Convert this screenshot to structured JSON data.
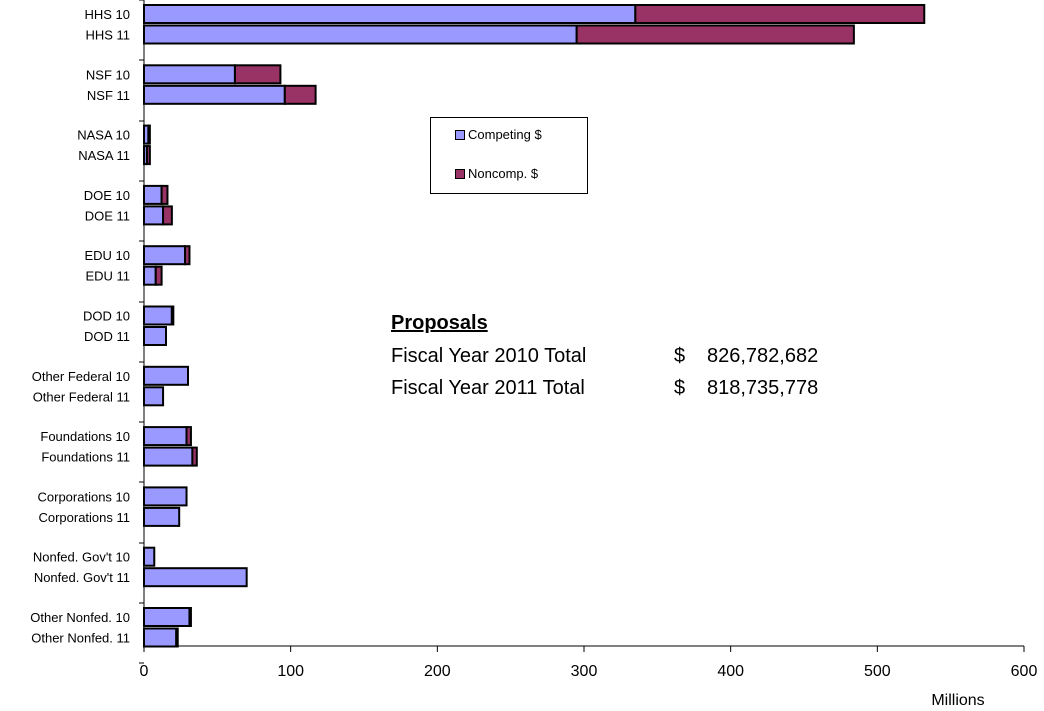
{
  "chart_data": {
    "type": "bar",
    "orientation": "horizontal",
    "stacked": true,
    "categories": [
      "HHS 10",
      "HHS 11",
      "NSF 10",
      "NSF 11",
      "NASA 10",
      "NASA 11",
      "DOE 10",
      "DOE 11",
      "EDU 10",
      "EDU 11",
      "DOD 10",
      "DOD 11",
      "Other Federal 10",
      "Other Federal 11",
      "Foundations 10",
      "Foundations 11",
      "Corporations 10",
      "Corporations 11",
      "Nonfed. Gov't 10",
      "Nonfed. Gov't 11",
      "Other Nonfed. 10",
      "Other Nonfed. 11"
    ],
    "series": [
      {
        "name": "Competing $",
        "color": "#9999ff",
        "values": [
          335,
          295,
          62,
          96,
          3,
          2,
          12,
          13,
          28,
          8,
          19,
          15,
          30,
          13,
          29,
          33,
          29,
          24,
          7,
          70,
          31,
          22
        ]
      },
      {
        "name": "Noncomp. $",
        "color": "#993366",
        "values": [
          197,
          189,
          31,
          21,
          1,
          2,
          4,
          6,
          3,
          4,
          1,
          0,
          0,
          0,
          3,
          3,
          0,
          0,
          0,
          0,
          1,
          1
        ]
      }
    ],
    "xlim": [
      0,
      600
    ],
    "xticks": [
      "0",
      "100",
      "200",
      "300",
      "400",
      "500",
      "600"
    ],
    "xunit": "Millions",
    "grid": false,
    "legend_position": "top-center"
  },
  "annotation": {
    "title": "Proposals",
    "rows": [
      {
        "label": "Fiscal Year 2010 Total",
        "currency": "$",
        "amount": "826,782,682"
      },
      {
        "label": "Fiscal Year 2011 Total",
        "currency": "$",
        "amount": "818,735,778"
      }
    ]
  }
}
